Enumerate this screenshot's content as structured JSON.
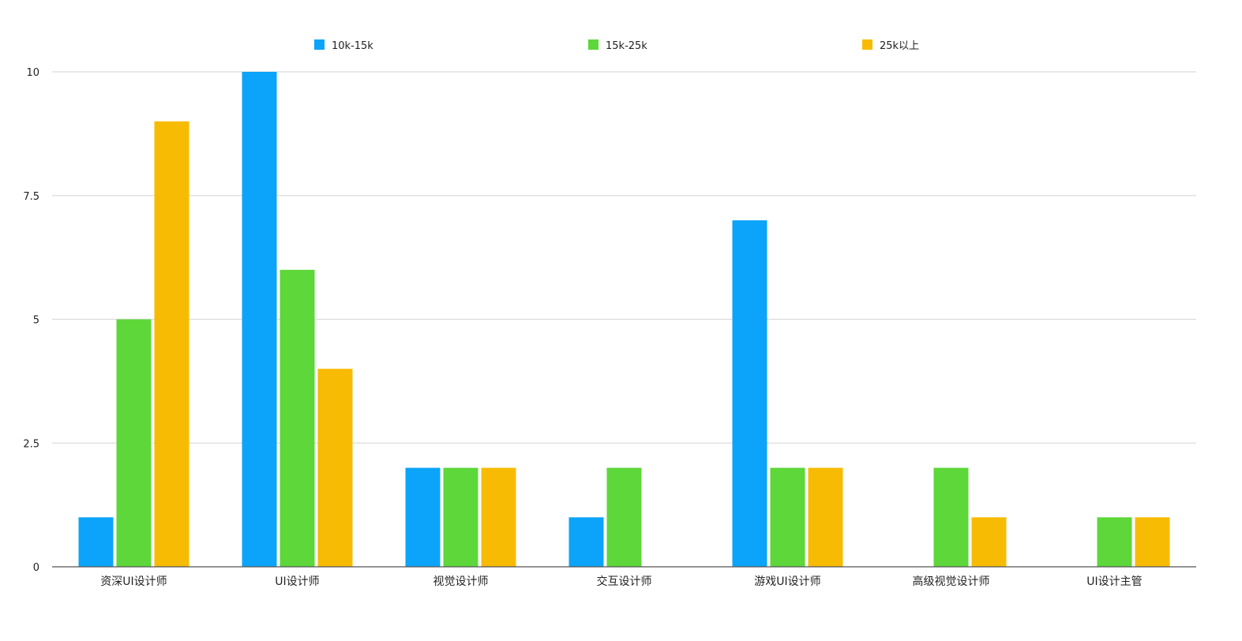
{
  "chart_data": {
    "type": "bar",
    "categories": [
      "资深UI设计师",
      "UI设计师",
      "视觉设计师",
      "交互设计师",
      "游戏UI设计师",
      "高级视觉设计师",
      "UI设计主管"
    ],
    "series": [
      {
        "name": "10k-15k",
        "color": "#0ba4fa",
        "values": [
          1,
          10,
          2,
          1,
          7,
          0,
          0
        ]
      },
      {
        "name": "15k-25k",
        "color": "#5dd73a",
        "values": [
          5,
          6,
          2,
          2,
          2,
          2,
          1
        ]
      },
      {
        "name": "25k以上",
        "color": "#f8bb03",
        "values": [
          9,
          4,
          2,
          0,
          2,
          1,
          1
        ]
      }
    ],
    "ylim": [
      0,
      10
    ],
    "yticks": [
      "0",
      "2.5",
      "5",
      "7.5",
      "10"
    ],
    "grid": true,
    "legend_position": "top"
  }
}
